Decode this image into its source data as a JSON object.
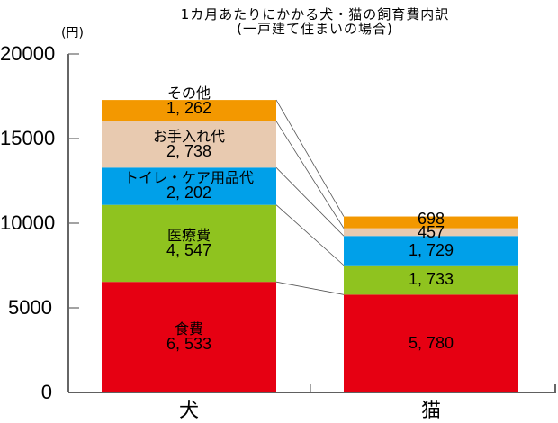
{
  "chart_data": {
    "type": "bar",
    "stacked": true,
    "title": "1カ月あたりにかかる犬・猫の飼育費内訳",
    "subtitle": "(一戸建て住まいの場合)",
    "ylabel": "(円)",
    "xlabel": "",
    "ylim": [
      0,
      20000
    ],
    "yticks": [
      "0",
      "5000",
      "10000",
      "15000",
      "20000"
    ],
    "categories": [
      "犬",
      "猫"
    ],
    "series": [
      {
        "name": "食費",
        "color": "#e60012",
        "values": [
          6533,
          5780
        ],
        "labels": [
          "6, 533",
          "5, 780"
        ]
      },
      {
        "name": "医療費",
        "color": "#8fc31f",
        "values": [
          4547,
          1733
        ],
        "labels": [
          "4, 547",
          "1, 733"
        ]
      },
      {
        "name": "トイレ・ケア用品代",
        "color": "#00a0e9",
        "values": [
          2202,
          1729
        ],
        "labels": [
          "2, 202",
          "1, 729"
        ]
      },
      {
        "name": "お手入れ代",
        "color": "#e8cab0",
        "values": [
          2738,
          457
        ],
        "labels": [
          "2, 738",
          "457"
        ]
      },
      {
        "name": "その他",
        "color": "#f39800",
        "values": [
          1262,
          698
        ],
        "labels": [
          "1, 262",
          "698"
        ]
      }
    ],
    "grid": false,
    "legend": "none (labels inside bars)",
    "connector_lines": true
  }
}
